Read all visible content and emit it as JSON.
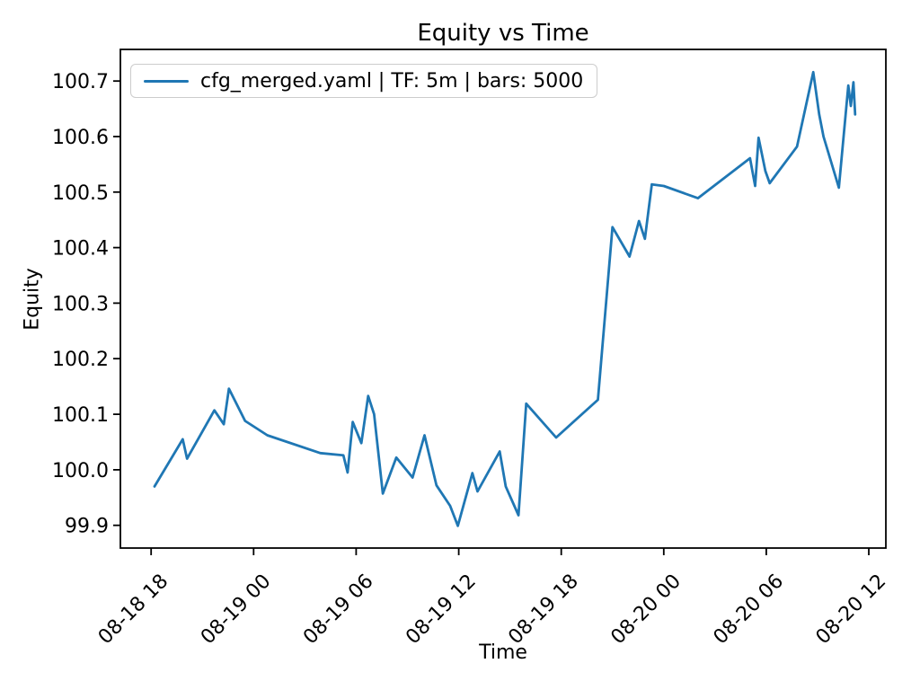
{
  "chart_data": {
    "type": "line",
    "title": "Equity vs Time",
    "xlabel": "Time",
    "ylabel": "Equity",
    "grid": false,
    "legend": {
      "position": "upper left",
      "entries": [
        {
          "label": "cfg_merged.yaml | TF: 5m | bars: 5000",
          "color": "#1f77b4"
        }
      ]
    },
    "x_axis": {
      "unit": "hours after 08-18 18:00",
      "lim": [
        -1.8,
        43.0
      ],
      "ticks": [
        {
          "t": 0,
          "label": "08-18 18"
        },
        {
          "t": 6,
          "label": "08-19 00"
        },
        {
          "t": 12,
          "label": "08-19 06"
        },
        {
          "t": 18,
          "label": "08-19 12"
        },
        {
          "t": 24,
          "label": "08-19 18"
        },
        {
          "t": 30,
          "label": "08-20 00"
        },
        {
          "t": 36,
          "label": "08-20 06"
        },
        {
          "t": 42,
          "label": "08-20 12"
        }
      ]
    },
    "y_axis": {
      "lim": [
        99.859,
        100.757
      ],
      "ticks": [
        99.9,
        100.0,
        100.1,
        100.2,
        100.3,
        100.4,
        100.5,
        100.6,
        100.7
      ]
    },
    "series": [
      {
        "name": "cfg_merged.yaml | TF: 5m | bars: 5000",
        "color": "#1f77b4",
        "points": [
          [
            0.2,
            99.97
          ],
          [
            1.85,
            100.055
          ],
          [
            2.1,
            100.02
          ],
          [
            3.7,
            100.107
          ],
          [
            4.25,
            100.082
          ],
          [
            4.55,
            100.146
          ],
          [
            5.5,
            100.088
          ],
          [
            6.8,
            100.062
          ],
          [
            9.9,
            100.03
          ],
          [
            11.25,
            100.026
          ],
          [
            11.5,
            99.995
          ],
          [
            11.8,
            100.086
          ],
          [
            12.3,
            100.048
          ],
          [
            12.7,
            100.133
          ],
          [
            13.05,
            100.1
          ],
          [
            13.56,
            99.957
          ],
          [
            14.35,
            100.022
          ],
          [
            15.3,
            99.986
          ],
          [
            16.0,
            100.062
          ],
          [
            16.7,
            99.972
          ],
          [
            17.5,
            99.935
          ],
          [
            17.95,
            99.899
          ],
          [
            18.8,
            99.994
          ],
          [
            19.1,
            99.961
          ],
          [
            20.4,
            100.033
          ],
          [
            20.75,
            99.97
          ],
          [
            21.5,
            99.918
          ],
          [
            21.95,
            100.119
          ],
          [
            23.7,
            100.058
          ],
          [
            26.15,
            100.126
          ],
          [
            27.0,
            100.437
          ],
          [
            28.0,
            100.384
          ],
          [
            28.55,
            100.448
          ],
          [
            28.9,
            100.416
          ],
          [
            29.3,
            100.514
          ],
          [
            30.0,
            100.511
          ],
          [
            32.0,
            100.489
          ],
          [
            35.05,
            100.561
          ],
          [
            35.35,
            100.511
          ],
          [
            35.55,
            100.598
          ],
          [
            35.95,
            100.538
          ],
          [
            36.2,
            100.516
          ],
          [
            37.8,
            100.582
          ],
          [
            38.75,
            100.716
          ],
          [
            39.1,
            100.64
          ],
          [
            39.35,
            100.6
          ],
          [
            40.25,
            100.508
          ],
          [
            40.8,
            100.692
          ],
          [
            40.95,
            100.655
          ],
          [
            41.1,
            100.698
          ],
          [
            41.2,
            100.64
          ]
        ]
      }
    ]
  }
}
